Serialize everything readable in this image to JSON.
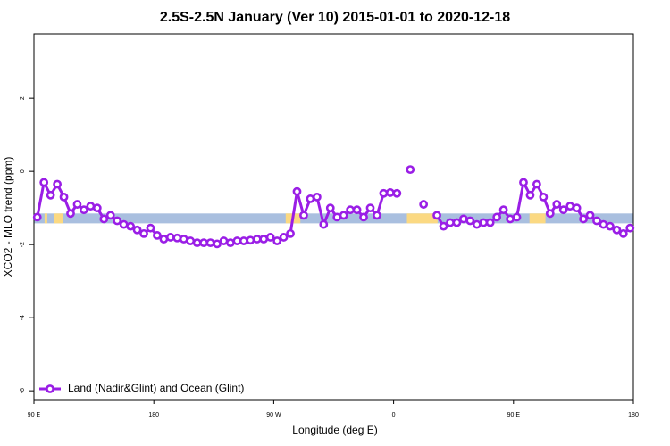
{
  "chart_data": {
    "type": "line",
    "title": "2.5S-2.5N January (Ver 10)   2015-01-01 to 2020-12-18",
    "x_label": "Longitude (deg E)",
    "y_label": "XCO2 - MLO trend (ppm)",
    "xlim": [
      90,
      540
    ],
    "xticks": [
      {
        "value": 90,
        "label": "90 E"
      },
      180,
      {
        "value": 270,
        "label": "90 W"
      },
      {
        "value": 360,
        "label": "0"
      },
      {
        "value": 450,
        "label": "90 E"
      },
      {
        "value": 540,
        "label": "180"
      }
    ],
    "ylim": [
      -6.24,
      3.76
    ],
    "yticks": [
      2,
      0,
      -2,
      -4,
      -6
    ],
    "strip": {
      "range": [
        -1.42,
        -1.15
      ],
      "color": "#a9bfdf",
      "highlights": [
        {
          "from": 98,
          "to": 100,
          "color": "#fbd982"
        },
        {
          "from": 105,
          "to": 112,
          "color": "#fbd982"
        },
        {
          "from": 279,
          "to": 290,
          "color": "#fbd982"
        },
        {
          "from": 370,
          "to": 393,
          "color": "#fbd982"
        },
        {
          "from": 462,
          "to": 474,
          "color": "#fbd982"
        }
      ]
    },
    "x": [
      92.5,
      97.5,
      102.5,
      107.5,
      112.5,
      117.5,
      122.5,
      127.5,
      132.5,
      137.5,
      142.5,
      147.5,
      152.5,
      157.5,
      162.5,
      167.5,
      172.5,
      177.5,
      182.5,
      187.5,
      192.5,
      197.5,
      202.5,
      207.5,
      212.5,
      217.5,
      222.5,
      227.5,
      232.5,
      237.5,
      242.5,
      247.5,
      252.5,
      257.5,
      262.5,
      267.5,
      272.5,
      277.5,
      282.5,
      287.5,
      292.5,
      297.5,
      302.5,
      307.5,
      312.5,
      317.5,
      322.5,
      327.5,
      332.5,
      337.5,
      342.5,
      347.5,
      352.5,
      357.5,
      362.5,
      367.5,
      372.5,
      377.5,
      382.5,
      387.5,
      392.5,
      397.5,
      402.5,
      407.5,
      412.5,
      417.5,
      422.5,
      427.5,
      432.5,
      437.5,
      442.5,
      447.5,
      452.5,
      457.5,
      462.5,
      467.5,
      472.5,
      477.5,
      482.5,
      487.5,
      492.5,
      497.5,
      502.5,
      507.5,
      512.5,
      517.5,
      522.5,
      527.5,
      532.5,
      537.5
    ],
    "series": [
      {
        "name": "Land (Nadir&Glint) and Ocean (Glint)",
        "color": "#9a1ee6",
        "values": [
          -1.25,
          -0.3,
          -0.65,
          -0.35,
          -0.7,
          -1.15,
          -0.9,
          -1.05,
          -0.95,
          -1.0,
          -1.3,
          -1.2,
          -1.35,
          -1.45,
          -1.5,
          -1.6,
          -1.7,
          -1.55,
          -1.75,
          -1.85,
          -1.8,
          -1.82,
          -1.85,
          -1.9,
          -1.95,
          -1.95,
          -1.95,
          -1.98,
          -1.9,
          -1.95,
          -1.9,
          -1.9,
          -1.88,
          -1.85,
          -1.85,
          -1.8,
          -1.9,
          -1.8,
          -1.7,
          -0.55,
          -1.2,
          -0.75,
          -0.7,
          -1.45,
          -1.0,
          -1.25,
          -1.2,
          -1.05,
          -1.05,
          -1.25,
          -1.0,
          -1.2,
          -0.6,
          -0.58,
          -0.6,
          null,
          0.05,
          null,
          -0.9,
          null,
          -1.2,
          -1.5,
          -1.4,
          -1.4,
          -1.3,
          -1.35,
          -1.45,
          -1.4,
          -1.4,
          -1.25,
          -1.05,
          -1.3,
          -1.25,
          -0.3,
          -0.65,
          -0.35,
          -0.7,
          -1.15,
          -0.9,
          -1.05,
          -0.95,
          -1.0,
          -1.3,
          -1.2,
          -1.35,
          -1.45,
          -1.5,
          -1.6,
          -1.7,
          -1.55
        ]
      }
    ]
  }
}
